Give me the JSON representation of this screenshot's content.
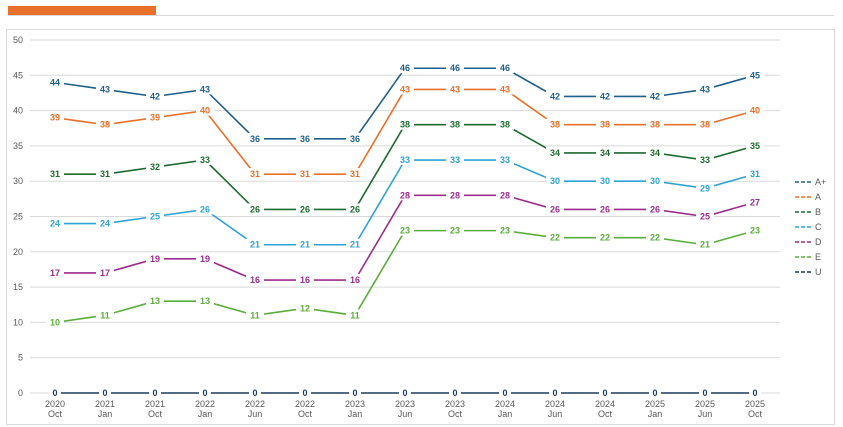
{
  "header": {
    "accent_color": "#E8702A"
  },
  "chart_data": {
    "type": "line",
    "title": "",
    "xlabel": "",
    "ylabel": "",
    "ylim": [
      0,
      50
    ],
    "yticks": [
      0,
      5,
      10,
      15,
      20,
      25,
      30,
      35,
      40,
      45,
      50
    ],
    "grid": "horizontal",
    "legend_position": "right",
    "categories": [
      {
        "year": "2020",
        "month": "Oct"
      },
      {
        "year": "2021",
        "month": "Jan"
      },
      {
        "year": "2021",
        "month": "Oct"
      },
      {
        "year": "2022",
        "month": "Jan"
      },
      {
        "year": "2022",
        "month": "Jun"
      },
      {
        "year": "2022",
        "month": "Oct"
      },
      {
        "year": "2023",
        "month": "Jan"
      },
      {
        "year": "2023",
        "month": "Jun"
      },
      {
        "year": "2023",
        "month": "Oct"
      },
      {
        "year": "2024",
        "month": "Jan"
      },
      {
        "year": "2024",
        "month": "Jun"
      },
      {
        "year": "2024",
        "month": "Oct"
      },
      {
        "year": "2025",
        "month": "Jan"
      },
      {
        "year": "2025",
        "month": "Jun"
      },
      {
        "year": "2025",
        "month": "Oct"
      }
    ],
    "series": [
      {
        "name": "A+",
        "color": "#1F5F8B",
        "values": [
          44,
          43,
          42,
          43,
          36,
          36,
          36,
          46,
          46,
          46,
          42,
          42,
          42,
          43,
          45
        ]
      },
      {
        "name": "A",
        "color": "#E8702A",
        "values": [
          39,
          38,
          39,
          40,
          31,
          31,
          31,
          43,
          43,
          43,
          38,
          38,
          38,
          38,
          40
        ]
      },
      {
        "name": "B",
        "color": "#1E6B2E",
        "values": [
          31,
          31,
          32,
          33,
          26,
          26,
          26,
          38,
          38,
          38,
          34,
          34,
          34,
          33,
          35
        ]
      },
      {
        "name": "C",
        "color": "#2EA3D5",
        "values": [
          24,
          24,
          25,
          26,
          21,
          21,
          21,
          33,
          33,
          33,
          30,
          30,
          30,
          29,
          31
        ]
      },
      {
        "name": "D",
        "color": "#9B2D8E",
        "values": [
          17,
          17,
          19,
          19,
          16,
          16,
          16,
          28,
          28,
          28,
          26,
          26,
          26,
          25,
          27
        ]
      },
      {
        "name": "E",
        "color": "#5AAE3A",
        "values": [
          10,
          11,
          13,
          13,
          11,
          12,
          11,
          23,
          23,
          23,
          22,
          22,
          22,
          21,
          23
        ]
      },
      {
        "name": "U",
        "color": "#1B3A5C",
        "values": [
          0,
          0,
          0,
          0,
          0,
          0,
          0,
          0,
          0,
          0,
          0,
          0,
          0,
          0,
          0
        ]
      }
    ]
  }
}
